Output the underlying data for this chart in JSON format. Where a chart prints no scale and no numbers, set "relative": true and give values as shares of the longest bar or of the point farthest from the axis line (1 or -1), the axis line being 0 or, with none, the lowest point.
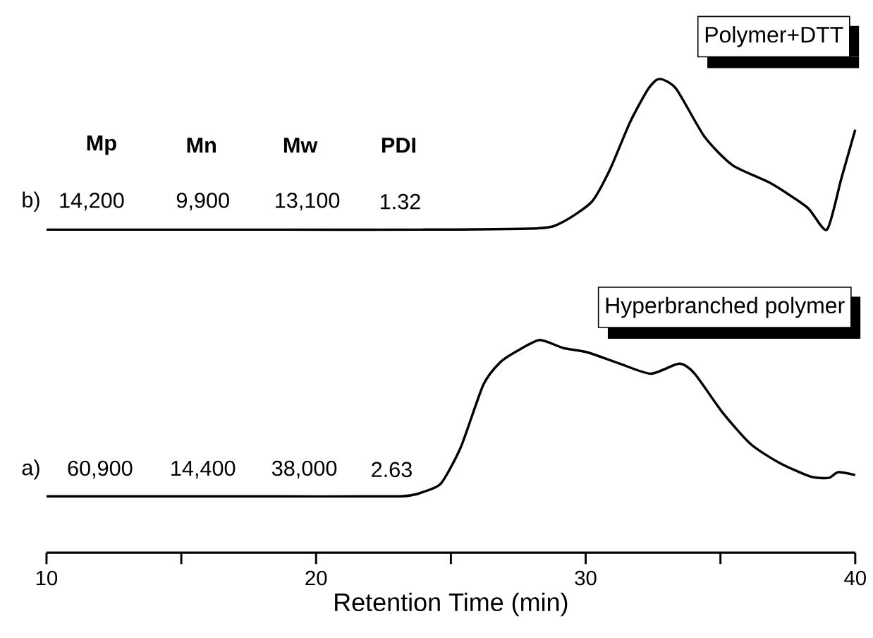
{
  "chart_data": {
    "type": "line",
    "relative": true,
    "xlabel": "Retention Time (min)",
    "xlim": [
      10,
      40
    ],
    "legend": "top right",
    "xticks": [
      10,
      {
        "value": 15,
        "label": null
      },
      20,
      {
        "value": 25,
        "label": null
      },
      30,
      {
        "value": 35,
        "label": null
      },
      40
    ],
    "series": [
      {
        "name": "Polymer+DTT",
        "color": "#000000",
        "x": [
          10,
          18.7,
          23.95,
          28.29,
          29.18,
          30.23,
          30.91,
          31.64,
          32.32,
          32.74,
          33.36,
          34.41,
          35.45,
          36.86,
          38.22,
          38.95,
          39.48,
          40.0
        ],
        "values": [
          0.682,
          0.682,
          0.682,
          0.685,
          0.699,
          0.741,
          0.81,
          0.908,
          0.979,
          1.0,
          0.979,
          0.878,
          0.818,
          0.78,
          0.729,
          0.682,
          0.789,
          0.893
        ]
      },
      {
        "name": "Hyperbranched polymer",
        "color": "#000000",
        "x": [
          10,
          18.73,
          22.91,
          23.59,
          23.95,
          24.63,
          25.37,
          26.2,
          26.83,
          27.46,
          28.29,
          29.18,
          30.07,
          31.27,
          32.42,
          33.47,
          34.04,
          35.09,
          36.13,
          37.18,
          38.33,
          39.01,
          39.37,
          40.0
        ],
        "values": [
          0.119,
          0.119,
          0.119,
          0.122,
          0.128,
          0.146,
          0.223,
          0.354,
          0.402,
          0.426,
          0.449,
          0.432,
          0.423,
          0.399,
          0.378,
          0.399,
          0.378,
          0.295,
          0.229,
          0.19,
          0.161,
          0.158,
          0.17,
          0.164
        ]
      }
    ],
    "annotations": [
      "Mp",
      "Mn",
      "Mw",
      "PDI",
      "b)",
      "14,200",
      "9,900",
      "13,100",
      "1.32",
      "a)",
      "60,900",
      "14,400",
      "38,000",
      "2.63"
    ]
  }
}
